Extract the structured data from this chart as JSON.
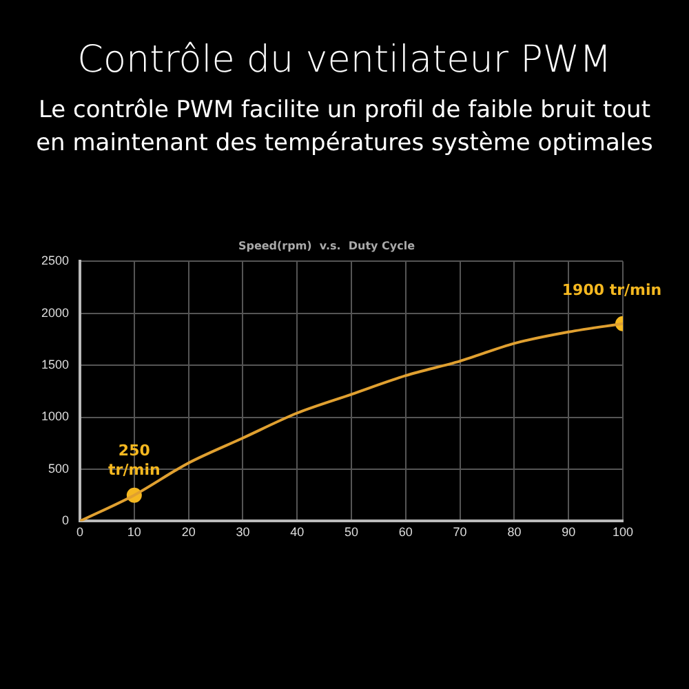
{
  "chart_data": {
    "type": "line",
    "title": "Contrôle du ventilateur PWM",
    "subtitle": "Le contrôle PWM facilite un profil de faible bruit tout en maintenant des températures système optimales",
    "xlim": [
      0,
      100
    ],
    "xticks": [
      0,
      10,
      20,
      30,
      40,
      50,
      60,
      70,
      80,
      90,
      100
    ],
    "ylim": [
      0,
      2500
    ],
    "yticks": [
      0,
      500,
      1000,
      1500,
      2000,
      2500
    ],
    "grid": true,
    "legend": false,
    "annotations": [
      "Speed(rpm)  v.s.  Duty Cycle",
      {
        "text": "250 tr/min",
        "x": 10,
        "y": 250
      },
      {
        "text": "1900 tr/min",
        "x": 100,
        "y": 1900
      }
    ],
    "series": [
      {
        "color": "#e0a030",
        "marker": "none",
        "x": [
          0,
          10,
          20,
          30,
          40,
          50,
          60,
          70,
          80,
          90,
          100
        ],
        "values": [
          0,
          250,
          560,
          800,
          1040,
          1220,
          1400,
          1540,
          1710,
          1820,
          1900
        ]
      },
      {
        "type": "scatter",
        "color": "#f5b820",
        "marker": "circle",
        "x": [
          10,
          100
        ],
        "values": [
          250,
          1900
        ]
      }
    ]
  }
}
